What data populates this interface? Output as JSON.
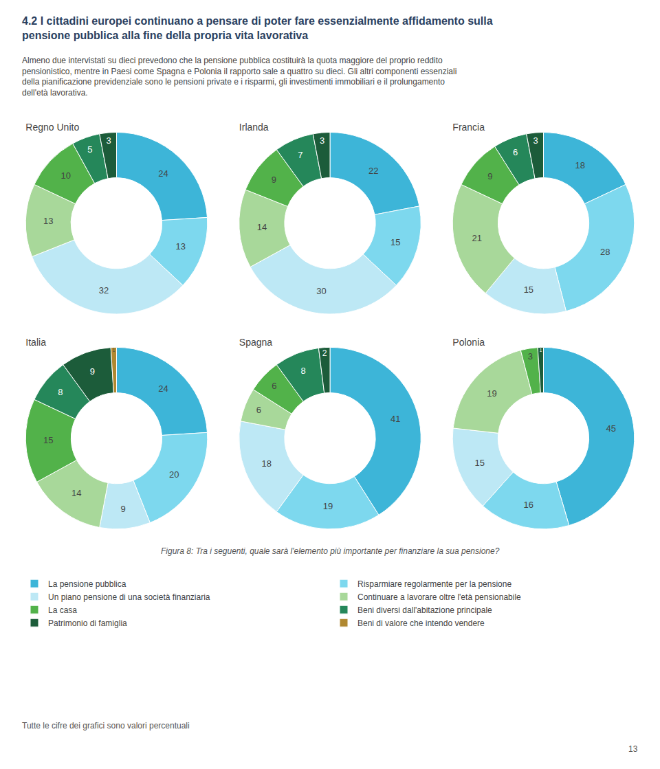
{
  "title": "4.2 I cittadini europei continuano a pensare di poter fare essenzialmente affidamento sulla pensione pubblica alla fine della propria vita lavorativa",
  "subtitle": "Almeno due intervistati su dieci prevedono che la pensione pubblica costituirà la quota maggiore del proprio reddito pensionistico, mentre in Paesi come Spagna e Polonia il rapporto sale a quattro su dieci. Gli altri componenti essenziali della pianificazione previdenziale sono le pensioni private e i risparmi, gli investimenti immobiliari e il prolungamento dell'età lavorativa.",
  "annotations": [
    "Figura 8: Tra i seguenti, quale sarà l'elemento più importante per finanziare la sua pensione?",
    "Tutte le cifre dei grafici sono valori percentuali",
    "13"
  ],
  "chart_data": [
    {
      "type": "donut",
      "title": "Regno Unito",
      "categories": [
        "La pensione pubblica",
        "Risparmiare regolarmente per la pensione",
        "Un piano pensione di una società finanziaria",
        "Continuare a lavorare oltre l'età pensionabile",
        "La casa",
        "Beni diversi dall'abitazione principale",
        "Patrimonio di famiglia"
      ],
      "values": [
        24,
        13,
        32,
        13,
        10,
        5,
        3
      ],
      "colors": [
        "#3DB5D8",
        "#7DD8EE",
        "#BDE8F5",
        "#A8D89A",
        "#52B24A",
        "#25875A",
        "#1C5C3A"
      ],
      "data_labels": true,
      "legend": "bottom"
    },
    {
      "type": "donut",
      "title": "Irlanda",
      "categories": [
        "La pensione pubblica",
        "Risparmiare regolarmente per la pensione",
        "Un piano pensione di una società finanziaria",
        "Continuare a lavorare oltre l'età pensionabile",
        "La casa",
        "Beni diversi dall'abitazione principale",
        "Patrimonio di famiglia"
      ],
      "values": [
        22,
        15,
        30,
        14,
        9,
        7,
        3
      ],
      "colors": [
        "#3DB5D8",
        "#7DD8EE",
        "#BDE8F5",
        "#A8D89A",
        "#52B24A",
        "#25875A",
        "#1C5C3A"
      ],
      "data_labels": true,
      "legend": "bottom"
    },
    {
      "type": "donut",
      "title": "Francia",
      "categories": [
        "La pensione pubblica",
        "Risparmiare regolarmente per la pensione",
        "Un piano pensione di una società finanziaria",
        "Continuare a lavorare oltre l'età pensionabile",
        "La casa",
        "Beni diversi dall'abitazione principale",
        "Patrimonio di famiglia"
      ],
      "values": [
        18,
        28,
        15,
        21,
        9,
        6,
        3
      ],
      "colors": [
        "#3DB5D8",
        "#7DD8EE",
        "#BDE8F5",
        "#A8D89A",
        "#52B24A",
        "#25875A",
        "#1C5C3A"
      ],
      "data_labels": true,
      "legend": "bottom"
    },
    {
      "type": "donut",
      "title": "Italia",
      "categories": [
        "La pensione pubblica",
        "Risparmiare regolarmente per la pensione",
        "Un piano pensione di una società finanziaria",
        "Continuare a lavorare oltre l'età pensionabile",
        "La casa",
        "Beni diversi dall'abitazione principale",
        "Patrimonio di famiglia",
        "Beni di valore che intendo vendere"
      ],
      "values": [
        24,
        20,
        9,
        14,
        15,
        8,
        9,
        1
      ],
      "colors": [
        "#3DB5D8",
        "#7DD8EE",
        "#BDE8F5",
        "#A8D89A",
        "#52B24A",
        "#25875A",
        "#1C5C3A",
        "#B08830"
      ],
      "data_labels": true,
      "legend": "bottom"
    },
    {
      "type": "donut",
      "title": "Spagna",
      "categories": [
        "La pensione pubblica",
        "Risparmiare regolarmente per la pensione",
        "Un piano pensione di una società finanziaria",
        "Continuare a lavorare oltre l'età pensionabile",
        "La casa",
        "Beni diversi dall'abitazione principale",
        "Patrimonio di famiglia"
      ],
      "values": [
        41,
        19,
        18,
        6,
        6,
        8,
        2
      ],
      "colors": [
        "#3DB5D8",
        "#7DD8EE",
        "#BDE8F5",
        "#A8D89A",
        "#52B24A",
        "#25875A",
        "#1C5C3A"
      ],
      "data_labels": true,
      "legend": "bottom"
    },
    {
      "type": "donut",
      "title": "Polonia",
      "categories": [
        "La pensione pubblica",
        "Risparmiare regolarmente per la pensione",
        "Un piano pensione di una società finanziaria",
        "Continuare a lavorare oltre l'età pensionabile",
        "La casa",
        "Patrimonio di famiglia"
      ],
      "values": [
        45,
        16,
        15,
        19,
        3,
        1
      ],
      "colors": [
        "#3DB5D8",
        "#7DD8EE",
        "#BDE8F5",
        "#A8D89A",
        "#52B24A",
        "#1C5C3A"
      ],
      "data_labels": true,
      "legend": "bottom"
    }
  ]
}
